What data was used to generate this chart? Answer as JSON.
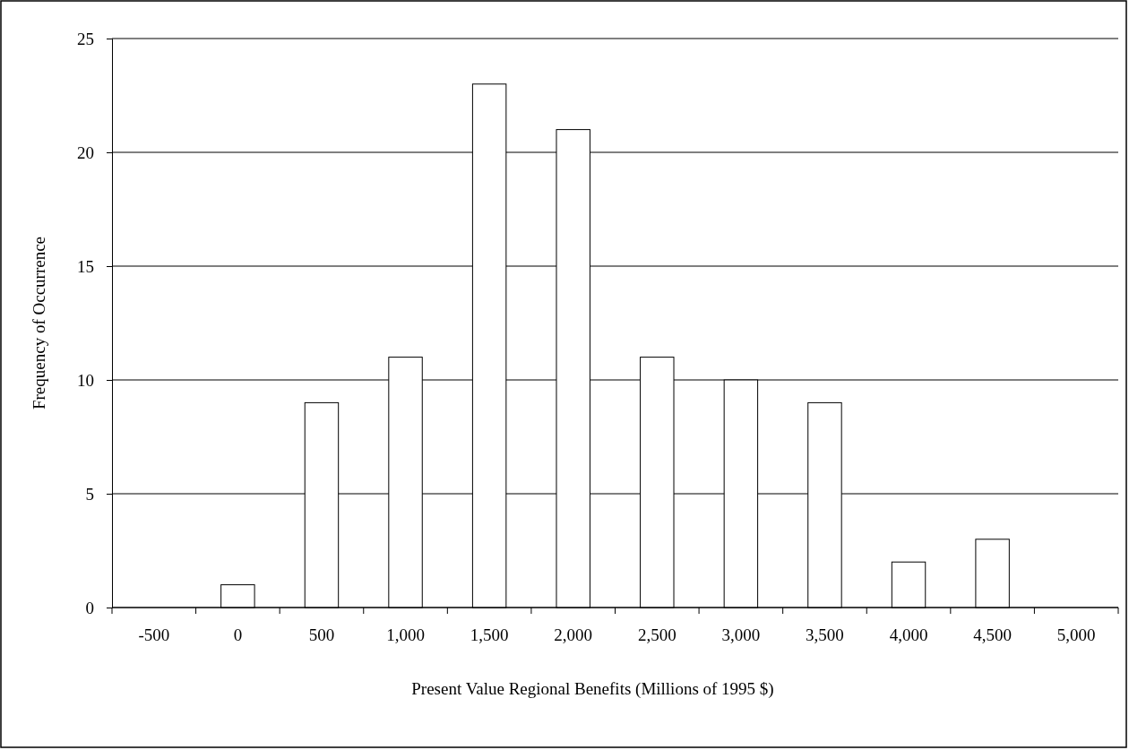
{
  "chart_data": {
    "type": "bar",
    "xlabel": "Present Value Regional Benefits (Millions of 1995 $)",
    "ylabel": "Frequency of Occurrence",
    "categories": [
      "-500",
      "0",
      "500",
      "1,000",
      "1,500",
      "2,000",
      "2,500",
      "3,000",
      "3,500",
      "4,000",
      "4,500",
      "5,000"
    ],
    "values": [
      0,
      1,
      9,
      11,
      23,
      21,
      11,
      10,
      9,
      2,
      3,
      0
    ],
    "color": "#ffffff",
    "ylim": [
      0,
      25
    ],
    "yticks": [
      0,
      5,
      10,
      15,
      20,
      25
    ],
    "grid": "y"
  }
}
